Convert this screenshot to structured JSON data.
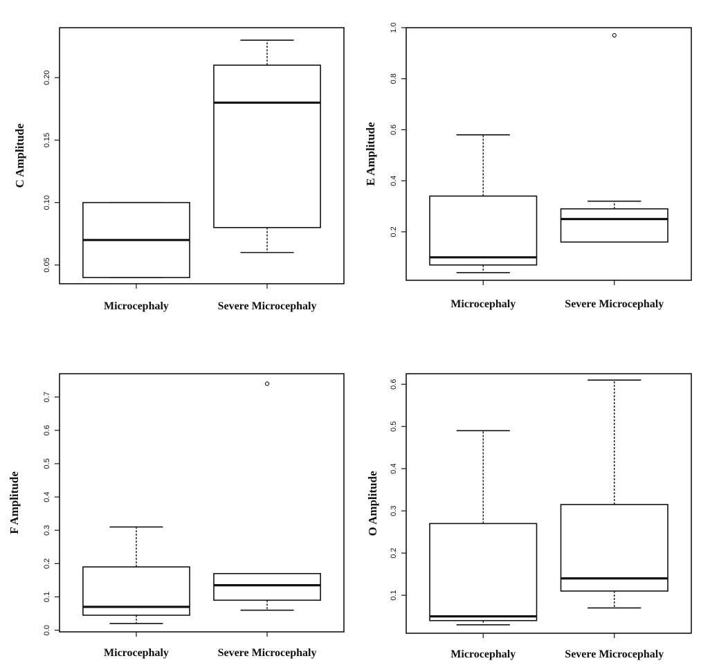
{
  "chart_data": [
    {
      "type": "box",
      "title": "",
      "ylabel": "C Amplitude",
      "categories": [
        "Microcephaly",
        "Severe Microcephaly"
      ],
      "yticks": [
        0.05,
        0.1,
        0.15,
        0.2
      ],
      "ytick_labels": [
        "0.05",
        "0.10",
        "0.15",
        "0.20"
      ],
      "ylim": [
        0.035,
        0.24
      ],
      "boxes": [
        {
          "name": "Microcephaly",
          "whisker_low": 0.04,
          "q1": 0.04,
          "median": 0.07,
          "q3": 0.1,
          "whisker_high": 0.1,
          "outliers": []
        },
        {
          "name": "Severe Microcephaly",
          "whisker_low": 0.06,
          "q1": 0.08,
          "median": 0.18,
          "q3": 0.21,
          "whisker_high": 0.23,
          "outliers": []
        }
      ]
    },
    {
      "type": "box",
      "title": "",
      "ylabel": "E Amplitude",
      "categories": [
        "Microcephaly",
        "Severe Microcephaly"
      ],
      "yticks": [
        0.2,
        0.4,
        0.6,
        0.8,
        1.0
      ],
      "ytick_labels": [
        "0.2",
        "0.4",
        "0.6",
        "0.8",
        "1.0"
      ],
      "ylim": [
        0.01,
        1.0
      ],
      "boxes": [
        {
          "name": "Microcephaly",
          "whisker_low": 0.04,
          "q1": 0.07,
          "median": 0.1,
          "q3": 0.34,
          "whisker_high": 0.58,
          "outliers": []
        },
        {
          "name": "Severe Microcephaly",
          "whisker_low": 0.16,
          "q1": 0.16,
          "median": 0.25,
          "q3": 0.29,
          "whisker_high": 0.32,
          "outliers": [
            0.97
          ]
        }
      ]
    },
    {
      "type": "box",
      "title": "",
      "ylabel": "F Amplitude",
      "categories": [
        "Microcephaly",
        "Severe Microcephaly"
      ],
      "yticks": [
        0.0,
        0.1,
        0.2,
        0.3,
        0.4,
        0.5,
        0.6,
        0.7
      ],
      "ytick_labels": [
        "0.0",
        "0.1",
        "0.2",
        "0.3",
        "0.4",
        "0.5",
        "0.6",
        "0.7"
      ],
      "ylim": [
        -0.005,
        0.77
      ],
      "boxes": [
        {
          "name": "Microcephaly",
          "whisker_low": 0.02,
          "q1": 0.045,
          "median": 0.07,
          "q3": 0.19,
          "whisker_high": 0.31,
          "outliers": []
        },
        {
          "name": "Severe Microcephaly",
          "whisker_low": 0.06,
          "q1": 0.09,
          "median": 0.135,
          "q3": 0.17,
          "whisker_high": 0.17,
          "outliers": [
            0.74
          ]
        }
      ]
    },
    {
      "type": "box",
      "title": "",
      "ylabel": "O Amplitude",
      "categories": [
        "Microcephaly",
        "Severe Microcephaly"
      ],
      "yticks": [
        0.1,
        0.2,
        0.3,
        0.4,
        0.5,
        0.6
      ],
      "ytick_labels": [
        "0.1",
        "0.2",
        "0.3",
        "0.4",
        "0.5",
        "0.6"
      ],
      "ylim": [
        0.01,
        0.625
      ],
      "boxes": [
        {
          "name": "Microcephaly",
          "whisker_low": 0.03,
          "q1": 0.04,
          "median": 0.05,
          "q3": 0.27,
          "whisker_high": 0.49,
          "outliers": []
        },
        {
          "name": "Severe Microcephaly",
          "whisker_low": 0.07,
          "q1": 0.11,
          "median": 0.14,
          "q3": 0.315,
          "whisker_high": 0.61,
          "outliers": []
        }
      ]
    }
  ]
}
